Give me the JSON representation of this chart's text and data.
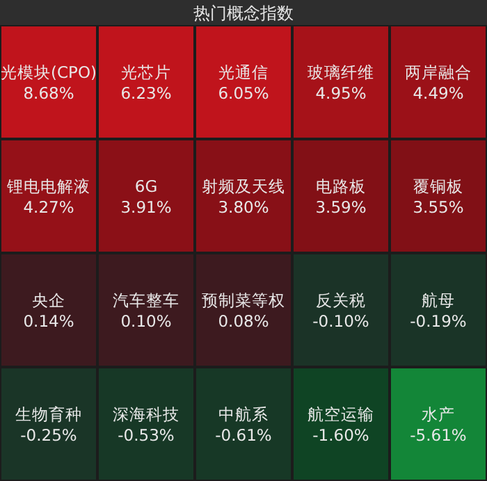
{
  "chart_data": {
    "type": "other",
    "title": "热门概念指数",
    "categories": [
      "光模块(CPO)",
      "光芯片",
      "光通信",
      "玻璃纤维",
      "两岸融合",
      "锂电电解液",
      "6G",
      "射频及天线",
      "电路板",
      "覆铜板",
      "央企",
      "汽车整车",
      "预制菜等权",
      "反关税",
      "航母",
      "生物育种",
      "深海科技",
      "中航系",
      "航空运输",
      "水产"
    ],
    "values": [
      8.68,
      6.23,
      6.05,
      4.95,
      4.49,
      4.27,
      3.91,
      3.8,
      3.59,
      3.55,
      0.14,
      0.1,
      0.08,
      -0.1,
      -0.19,
      -0.25,
      -0.53,
      -0.61,
      -1.6,
      -5.61
    ],
    "value_labels": [
      "8.68%",
      "6.23%",
      "6.05%",
      "4.95%",
      "4.49%",
      "4.27%",
      "3.91%",
      "3.80%",
      "3.59%",
      "3.55%",
      "0.14%",
      "0.10%",
      "0.08%",
      "-0.10%",
      "-0.19%",
      "-0.25%",
      "-0.53%",
      "-0.61%",
      "-1.60%",
      "-5.61%"
    ]
  }
}
